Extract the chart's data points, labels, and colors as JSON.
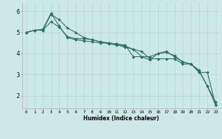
{
  "xlabel": "Humidex (Indice chaleur)",
  "ylabel": "",
  "background_color": "#cce8e8",
  "line_color": "#2a7060",
  "grid_color": "#b8d8d8",
  "xlim": [
    -0.5,
    23.5
  ],
  "ylim": [
    1.4,
    6.4
  ],
  "yticks": [
    2,
    3,
    4,
    5,
    6
  ],
  "xticks": [
    0,
    1,
    2,
    3,
    4,
    5,
    6,
    7,
    8,
    9,
    10,
    11,
    12,
    13,
    14,
    15,
    16,
    17,
    18,
    19,
    20,
    21,
    22,
    23
  ],
  "line1": [
    5.0,
    5.1,
    5.1,
    5.5,
    5.25,
    4.8,
    4.7,
    4.7,
    4.65,
    4.55,
    4.5,
    4.45,
    4.4,
    3.85,
    3.85,
    3.85,
    4.0,
    4.1,
    3.85,
    3.6,
    3.5,
    3.2,
    2.45,
    1.55
  ],
  "line2": [
    5.0,
    5.1,
    5.1,
    5.85,
    5.6,
    5.2,
    5.0,
    4.75,
    4.65,
    4.55,
    4.45,
    4.4,
    4.3,
    4.2,
    4.1,
    3.75,
    3.75,
    3.75,
    3.75,
    3.5,
    3.5,
    3.1,
    3.1,
    1.55
  ],
  "line3": [
    5.0,
    5.1,
    5.15,
    5.9,
    5.3,
    4.75,
    4.65,
    4.6,
    4.55,
    4.5,
    4.5,
    4.45,
    4.35,
    4.2,
    3.85,
    3.7,
    4.0,
    4.05,
    3.9,
    3.6,
    3.5,
    3.15,
    2.45,
    1.7
  ]
}
